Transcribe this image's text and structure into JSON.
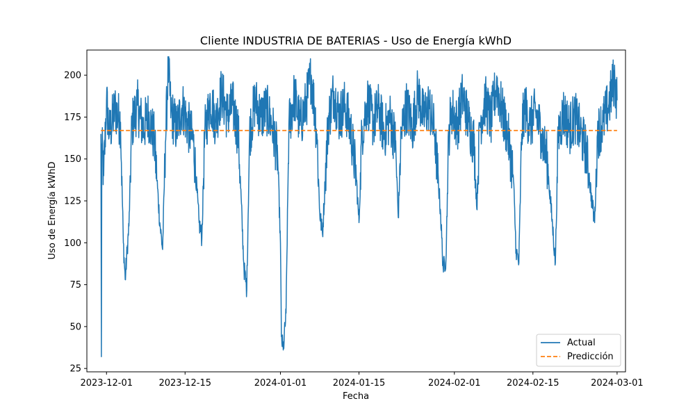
{
  "chart_data": {
    "type": "line",
    "title": "Cliente INDUSTRIA DE BATERIAS - Uso de Energía kWhD",
    "xlabel": "Fecha",
    "ylabel": "Uso de Energía kWhD",
    "xlim": [
      "2023-11-27T12:00",
      "2024-03-02T12:00"
    ],
    "ylim": [
      23,
      215
    ],
    "x_ticks": [
      "2023-12-01",
      "2023-12-15",
      "2024-01-01",
      "2024-01-15",
      "2024-02-01",
      "2024-02-15",
      "2024-03-01"
    ],
    "y_ticks": [
      25,
      50,
      75,
      100,
      125,
      150,
      175,
      200
    ],
    "legend_position": "lower-right",
    "grid": false,
    "series": [
      {
        "name": "Actual",
        "style": "solid",
        "color": "#1f77b4",
        "points": [
          [
            "2023-11-30T00:00",
            165
          ],
          [
            "2023-11-30T02:00",
            32
          ],
          [
            "2023-11-30T04:00",
            158
          ],
          [
            "2023-11-30T12:00",
            140
          ],
          [
            "2023-12-01T00:00",
            185
          ],
          [
            "2023-12-01T12:00",
            165
          ],
          [
            "2023-12-02T12:00",
            180
          ],
          [
            "2023-12-03T12:00",
            172
          ],
          [
            "2023-12-04T00:00",
            100
          ],
          [
            "2023-12-04T08:00",
            78
          ],
          [
            "2023-12-04T16:00",
            95
          ],
          [
            "2023-12-05T00:00",
            110
          ],
          [
            "2023-12-05T12:00",
            170
          ],
          [
            "2023-12-06T12:00",
            182
          ],
          [
            "2023-12-07T12:00",
            168
          ],
          [
            "2023-12-08T12:00",
            176
          ],
          [
            "2023-12-09T12:00",
            162
          ],
          [
            "2023-12-10T12:00",
            112
          ],
          [
            "2023-12-11T00:00",
            96
          ],
          [
            "2023-12-11T12:00",
            160
          ],
          [
            "2023-12-12T00:00",
            205
          ],
          [
            "2023-12-12T12:00",
            178
          ],
          [
            "2023-12-13T12:00",
            168
          ],
          [
            "2023-12-14T12:00",
            182
          ],
          [
            "2023-12-15T12:00",
            170
          ],
          [
            "2023-12-16T12:00",
            160
          ],
          [
            "2023-12-17T12:00",
            112
          ],
          [
            "2023-12-18T00:00",
            103
          ],
          [
            "2023-12-18T12:00",
            165
          ],
          [
            "2023-12-19T12:00",
            185
          ],
          [
            "2023-12-20T12:00",
            172
          ],
          [
            "2023-12-21T12:00",
            190
          ],
          [
            "2023-12-22T12:00",
            176
          ],
          [
            "2023-12-23T12:00",
            182
          ],
          [
            "2023-12-24T12:00",
            165
          ],
          [
            "2023-12-25T12:00",
            85
          ],
          [
            "2023-12-26T00:00",
            72
          ],
          [
            "2023-12-26T12:00",
            165
          ],
          [
            "2023-12-27T12:00",
            185
          ],
          [
            "2023-12-28T12:00",
            175
          ],
          [
            "2023-12-29T12:00",
            180
          ],
          [
            "2023-12-30T12:00",
            170
          ],
          [
            "2023-12-31T12:00",
            152
          ],
          [
            "2024-01-01T00:00",
            100
          ],
          [
            "2024-01-01T04:00",
            44
          ],
          [
            "2024-01-01T12:00",
            36
          ],
          [
            "2024-01-02T00:00",
            58
          ],
          [
            "2024-01-02T12:00",
            170
          ],
          [
            "2024-01-03T12:00",
            188
          ],
          [
            "2024-01-04T12:00",
            170
          ],
          [
            "2024-01-05T12:00",
            182
          ],
          [
            "2024-01-06T12:00",
            200
          ],
          [
            "2024-01-07T12:00",
            165
          ],
          [
            "2024-01-08T00:00",
            118
          ],
          [
            "2024-01-08T12:00",
            105
          ],
          [
            "2024-01-09T12:00",
            172
          ],
          [
            "2024-01-10T12:00",
            190
          ],
          [
            "2024-01-11T12:00",
            175
          ],
          [
            "2024-01-12T12:00",
            182
          ],
          [
            "2024-01-13T12:00",
            168
          ],
          [
            "2024-01-14T12:00",
            140
          ],
          [
            "2024-01-15T00:00",
            112
          ],
          [
            "2024-01-15T12:00",
            165
          ],
          [
            "2024-01-16T12:00",
            185
          ],
          [
            "2024-01-17T12:00",
            172
          ],
          [
            "2024-01-18T12:00",
            180
          ],
          [
            "2024-01-19T12:00",
            165
          ],
          [
            "2024-01-20T12:00",
            175
          ],
          [
            "2024-01-21T12:00",
            160
          ],
          [
            "2024-01-22T00:00",
            115
          ],
          [
            "2024-01-22T12:00",
            165
          ],
          [
            "2024-01-23T12:00",
            182
          ],
          [
            "2024-01-24T12:00",
            168
          ],
          [
            "2024-01-25T12:00",
            190
          ],
          [
            "2024-01-26T12:00",
            175
          ],
          [
            "2024-01-27T12:00",
            182
          ],
          [
            "2024-01-28T12:00",
            165
          ],
          [
            "2024-01-29T12:00",
            120
          ],
          [
            "2024-01-30T00:00",
            85
          ],
          [
            "2024-01-30T12:00",
            90
          ],
          [
            "2024-01-31T00:00",
            165
          ],
          [
            "2024-01-31T12:00",
            180
          ],
          [
            "2024-02-01T12:00",
            170
          ],
          [
            "2024-02-02T12:00",
            188
          ],
          [
            "2024-02-03T12:00",
            172
          ],
          [
            "2024-02-04T12:00",
            160
          ],
          [
            "2024-02-05T00:00",
            120
          ],
          [
            "2024-02-05T12:00",
            170
          ],
          [
            "2024-02-06T12:00",
            185
          ],
          [
            "2024-02-07T12:00",
            172
          ],
          [
            "2024-02-08T12:00",
            195
          ],
          [
            "2024-02-09T12:00",
            178
          ],
          [
            "2024-02-10T12:00",
            165
          ],
          [
            "2024-02-11T12:00",
            140
          ],
          [
            "2024-02-12T00:00",
            95
          ],
          [
            "2024-02-12T12:00",
            88
          ],
          [
            "2024-02-13T00:00",
            165
          ],
          [
            "2024-02-13T12:00",
            182
          ],
          [
            "2024-02-14T12:00",
            170
          ],
          [
            "2024-02-15T12:00",
            178
          ],
          [
            "2024-02-16T12:00",
            165
          ],
          [
            "2024-02-17T12:00",
            150
          ],
          [
            "2024-02-18T12:00",
            110
          ],
          [
            "2024-02-19T00:00",
            88
          ],
          [
            "2024-02-19T12:00",
            165
          ],
          [
            "2024-02-20T12:00",
            178
          ],
          [
            "2024-02-21T12:00",
            168
          ],
          [
            "2024-02-22T12:00",
            175
          ],
          [
            "2024-02-23T12:00",
            165
          ],
          [
            "2024-02-24T12:00",
            155
          ],
          [
            "2024-02-25T12:00",
            125
          ],
          [
            "2024-02-26T00:00",
            112
          ],
          [
            "2024-02-26T12:00",
            165
          ],
          [
            "2024-02-27T12:00",
            172
          ],
          [
            "2024-02-28T12:00",
            182
          ],
          [
            "2024-02-29T12:00",
            198
          ],
          [
            "2024-03-01T00:00",
            185
          ]
        ]
      },
      {
        "name": "Predicción",
        "style": "dashed",
        "color": "#ff7f0e",
        "points": [
          [
            "2023-11-30T00:00",
            167
          ],
          [
            "2024-03-01T00:00",
            167
          ]
        ]
      }
    ]
  }
}
